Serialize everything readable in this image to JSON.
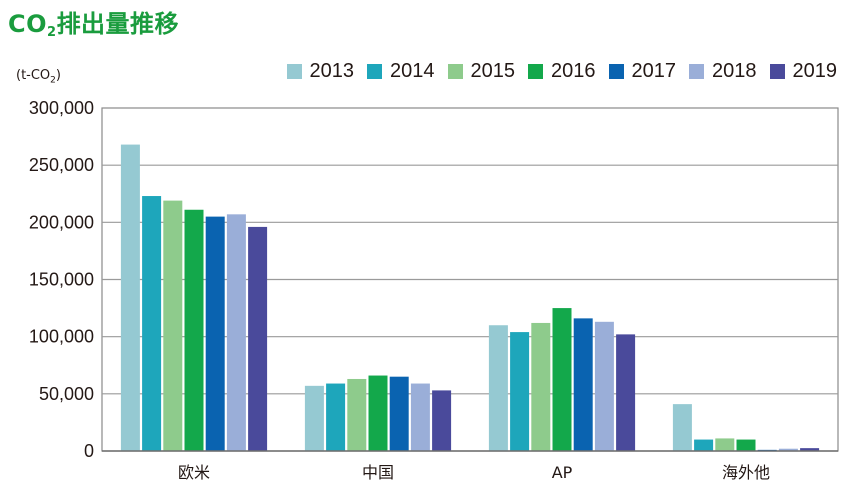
{
  "title": {
    "main": "CO",
    "sub": "2",
    "rest": "排出量推移"
  },
  "unit": {
    "pre": "(t-CO",
    "sub": "2",
    "post": ")"
  },
  "chart_data": {
    "type": "bar",
    "title": "CO2排出量推移",
    "ylabel": "(t-CO2)",
    "xlabel": "",
    "categories": [
      "欧米",
      "中国",
      "AP",
      "海外他"
    ],
    "ylim": [
      0,
      300000
    ],
    "yticks": [
      0,
      50000,
      100000,
      150000,
      200000,
      250000,
      300000
    ],
    "ytick_labels": [
      "0",
      "50,000",
      "100,000",
      "150,000",
      "200,000",
      "250,000",
      "300,000"
    ],
    "grid": true,
    "legend_position": "top-right",
    "series": [
      {
        "name": "2013",
        "color": "#95c9d2",
        "values": [
          268000,
          57000,
          110000,
          41000
        ]
      },
      {
        "name": "2014",
        "color": "#1ea6bb",
        "values": [
          223000,
          59000,
          104000,
          10000
        ]
      },
      {
        "name": "2015",
        "color": "#8ecb8c",
        "values": [
          219000,
          63000,
          112000,
          11000
        ]
      },
      {
        "name": "2016",
        "color": "#13a84b",
        "values": [
          211000,
          66000,
          125000,
          10000
        ]
      },
      {
        "name": "2017",
        "color": "#0a63b0",
        "values": [
          205000,
          65000,
          116000,
          1000
        ]
      },
      {
        "name": "2018",
        "color": "#9aaed8",
        "values": [
          207000,
          59000,
          113000,
          2000
        ]
      },
      {
        "name": "2019",
        "color": "#4a4a9b",
        "values": [
          196000,
          53000,
          102000,
          2500
        ]
      }
    ]
  }
}
